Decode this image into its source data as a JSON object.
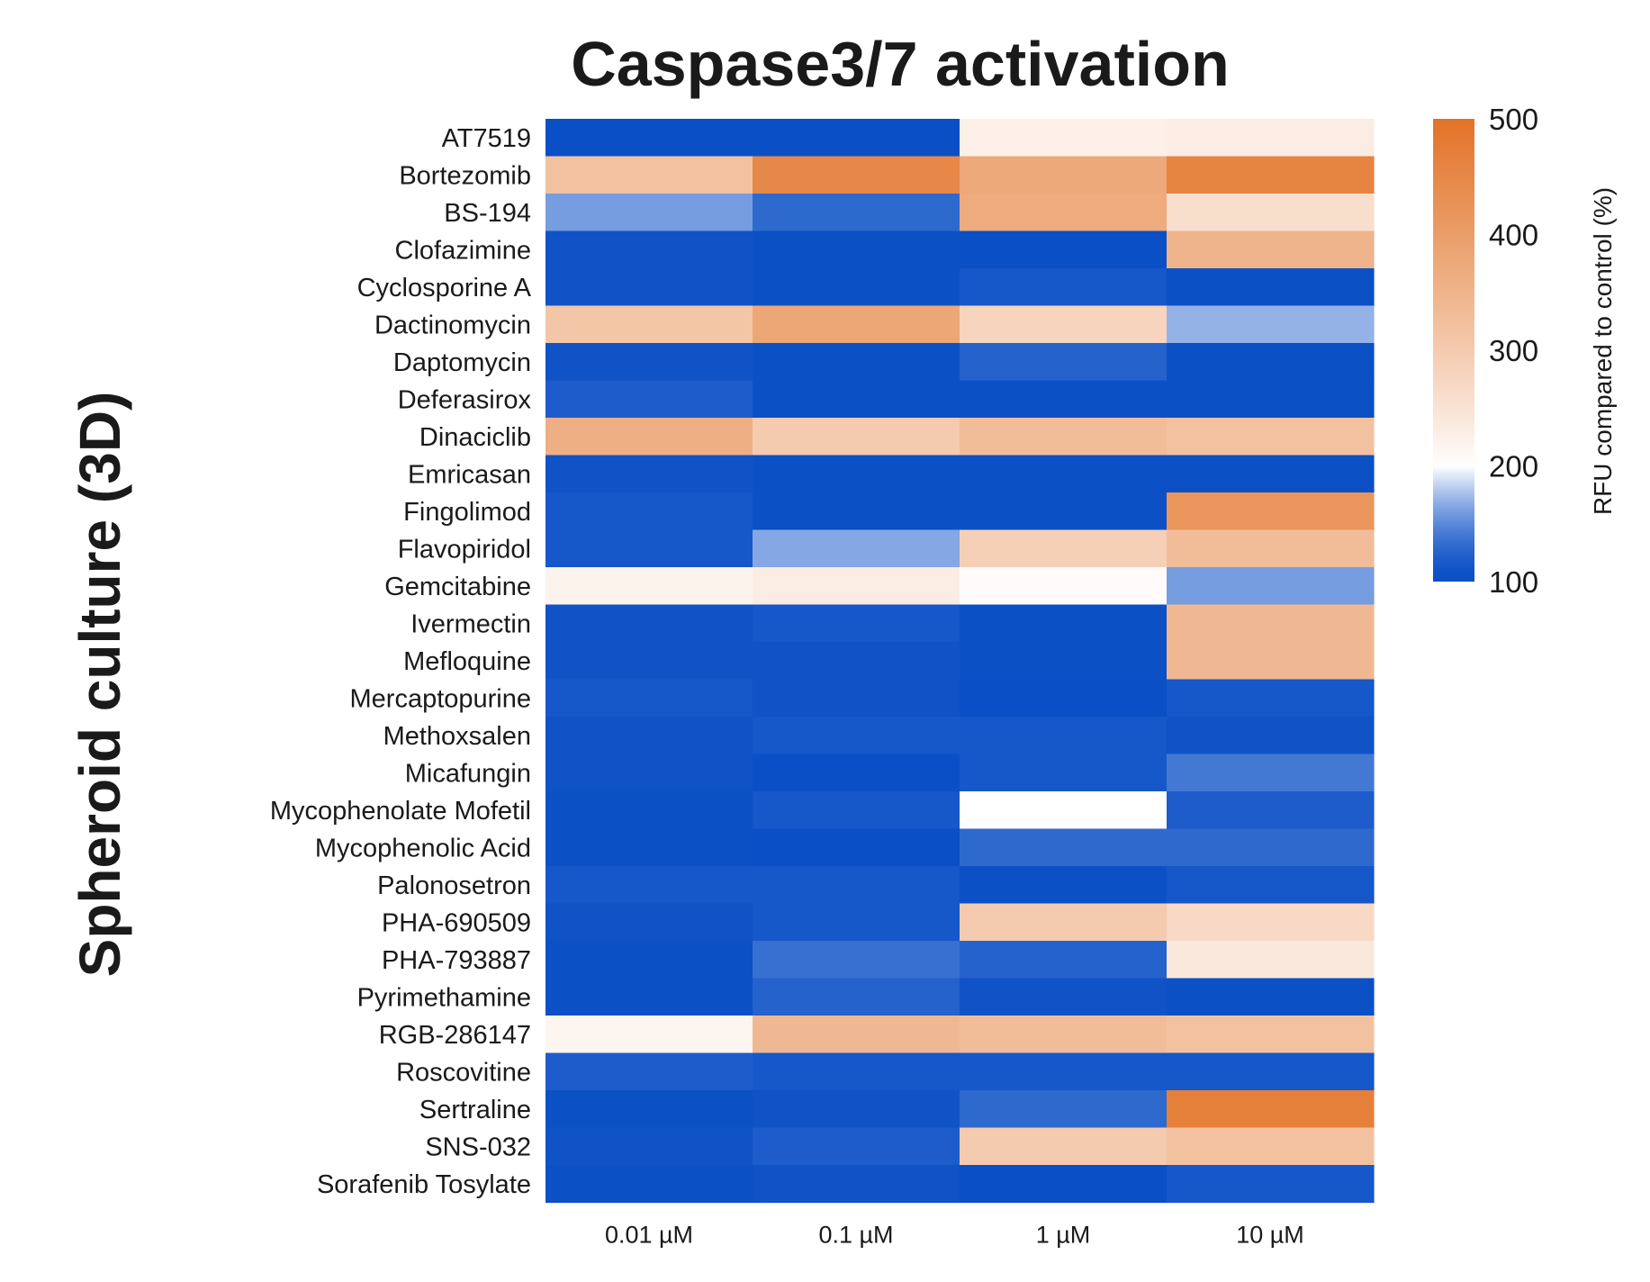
{
  "chart_data": {
    "type": "heatmap",
    "title": "Caspase3/7 activation",
    "ylabel": "Spheroid culture (3D)",
    "xlabel": "",
    "columns": [
      "0.01 µM",
      "0.1 µM",
      "1 µM",
      "10 µM"
    ],
    "rows": [
      "AT7519",
      "Bortezomib",
      "BS-194",
      "Clofazimine",
      "Cyclosporine A",
      "Dactinomycin",
      "Daptomycin",
      "Deferasirox",
      "Dinaciclib",
      "Emricasan",
      "Fingolimod",
      "Flavopiridol",
      "Gemcitabine",
      "Ivermectin",
      "Mefloquine",
      "Mercaptopurine",
      "Methoxsalen",
      "Micafungin",
      "Mycophenolate Mofetil",
      "Mycophenolic Acid",
      "Palonosetron",
      "PHA-690509",
      "PHA-793887",
      "Pyrimethamine",
      "RGB-286147",
      "Roscovitine",
      "Sertraline",
      "SNS-032",
      "Sorafenib Tosylate"
    ],
    "values": [
      [
        100,
        100,
        225,
        230
      ],
      [
        320,
        450,
        375,
        460
      ],
      [
        160,
        130,
        370,
        260
      ],
      [
        110,
        105,
        100,
        350
      ],
      [
        110,
        105,
        115,
        105
      ],
      [
        310,
        380,
        280,
        170
      ],
      [
        110,
        105,
        125,
        105
      ],
      [
        120,
        105,
        105,
        105
      ],
      [
        360,
        300,
        330,
        320
      ],
      [
        110,
        105,
        105,
        105
      ],
      [
        115,
        105,
        105,
        420
      ],
      [
        115,
        165,
        290,
        330
      ],
      [
        220,
        230,
        205,
        160
      ],
      [
        110,
        115,
        105,
        340
      ],
      [
        110,
        110,
        105,
        340
      ],
      [
        115,
        110,
        100,
        115
      ],
      [
        110,
        115,
        115,
        110
      ],
      [
        110,
        100,
        115,
        140
      ],
      [
        105,
        115,
        200,
        120
      ],
      [
        105,
        100,
        130,
        130
      ],
      [
        115,
        115,
        105,
        115
      ],
      [
        110,
        115,
        300,
        270
      ],
      [
        105,
        135,
        125,
        240
      ],
      [
        105,
        125,
        110,
        105
      ],
      [
        215,
        340,
        330,
        320
      ],
      [
        120,
        115,
        115,
        115
      ],
      [
        105,
        110,
        130,
        470
      ],
      [
        110,
        120,
        300,
        320
      ],
      [
        105,
        110,
        100,
        115
      ]
    ],
    "colorbar": {
      "label": "RFU compared to control (%)",
      "range": [
        100,
        500
      ],
      "ticks": [
        100,
        200,
        300,
        400,
        500
      ],
      "colors": {
        "low": "#0a4fc6",
        "mid": "#ffffff",
        "high": "#e27327"
      },
      "midpoint": 200
    }
  }
}
